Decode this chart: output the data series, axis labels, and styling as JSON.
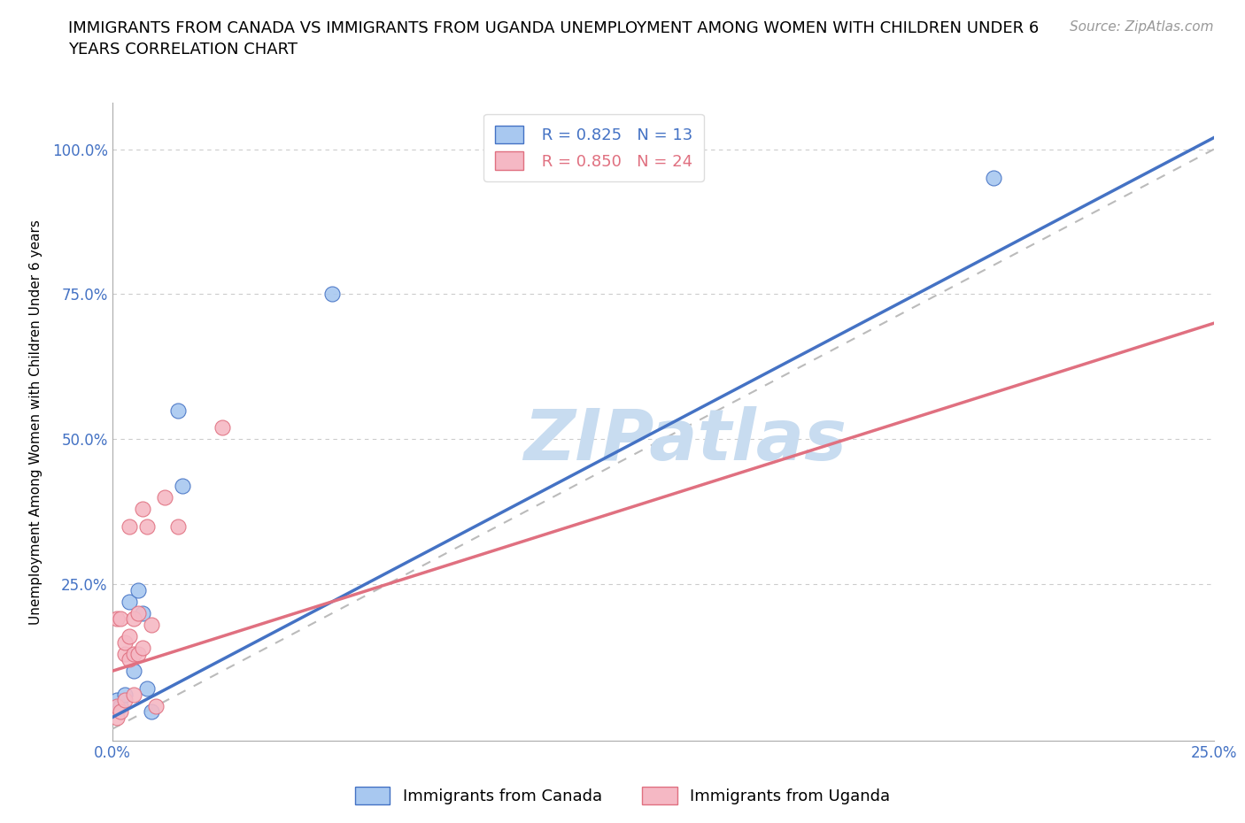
{
  "title": "IMMIGRANTS FROM CANADA VS IMMIGRANTS FROM UGANDA UNEMPLOYMENT AMONG WOMEN WITH CHILDREN UNDER 6\nYEARS CORRELATION CHART",
  "source": "Source: ZipAtlas.com",
  "ylabel": "Unemployment Among Women with Children Under 6 years",
  "xlim": [
    0.0,
    0.25
  ],
  "ylim": [
    -0.02,
    1.08
  ],
  "xticks": [
    0.0,
    0.05,
    0.1,
    0.15,
    0.2,
    0.25
  ],
  "yticks": [
    0.0,
    0.25,
    0.5,
    0.75,
    1.0
  ],
  "canada_R": 0.825,
  "canada_N": 13,
  "uganda_R": 0.85,
  "uganda_N": 24,
  "canada_color": "#A8C8F0",
  "uganda_color": "#F5B8C4",
  "canada_line_color": "#4472C4",
  "uganda_line_color": "#E07080",
  "ref_line_color": "#BBBBBB",
  "background_color": "#FFFFFF",
  "watermark_color": "#C8DCF0",
  "canada_x": [
    0.001,
    0.002,
    0.003,
    0.004,
    0.005,
    0.006,
    0.007,
    0.008,
    0.009,
    0.015,
    0.016,
    0.05,
    0.2
  ],
  "canada_y": [
    0.05,
    0.04,
    0.06,
    0.22,
    0.1,
    0.24,
    0.2,
    0.07,
    0.03,
    0.55,
    0.42,
    0.75,
    0.95
  ],
  "uganda_x": [
    0.001,
    0.001,
    0.001,
    0.002,
    0.002,
    0.003,
    0.003,
    0.003,
    0.004,
    0.004,
    0.004,
    0.005,
    0.005,
    0.005,
    0.006,
    0.006,
    0.007,
    0.007,
    0.008,
    0.009,
    0.01,
    0.012,
    0.015,
    0.025
  ],
  "uganda_y": [
    0.02,
    0.04,
    0.19,
    0.03,
    0.19,
    0.05,
    0.13,
    0.15,
    0.12,
    0.16,
    0.35,
    0.06,
    0.13,
    0.19,
    0.13,
    0.2,
    0.14,
    0.38,
    0.35,
    0.18,
    0.04,
    0.4,
    0.35,
    0.52
  ],
  "title_fontsize": 13,
  "axis_label_fontsize": 11,
  "tick_label_fontsize": 12,
  "legend_fontsize": 13,
  "source_fontsize": 11
}
